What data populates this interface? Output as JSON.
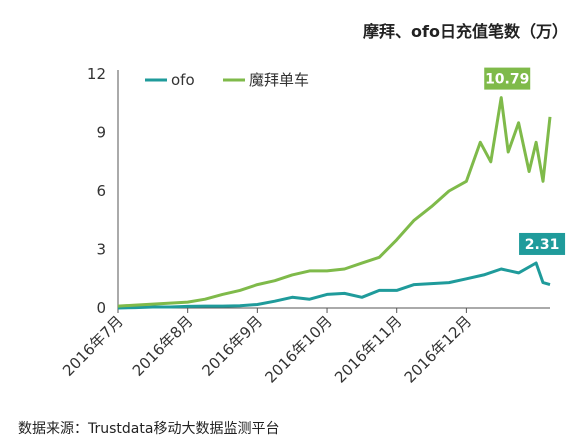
{
  "chart_data": {
    "type": "line",
    "title": "摩拜、ofo日充值笔数（万）",
    "source": "数据来源：Trustdata移动大数据监测平台",
    "x_labels": [
      "2016年7月",
      "2016年8月",
      "2016年9月",
      "2016年10月",
      "2016年11月",
      "2016年12月"
    ],
    "yticks": [
      0,
      3,
      6,
      9,
      12
    ],
    "ylim": [
      0,
      12
    ],
    "xlim": [
      0,
      6.2
    ],
    "legend_position": "top-left",
    "series": [
      {
        "name": "ofo",
        "color": "#1f9b9b",
        "annotation": "2.31",
        "x": [
          0,
          0.25,
          0.5,
          0.75,
          1,
          1.25,
          1.5,
          1.75,
          2,
          2.25,
          2.5,
          2.75,
          3,
          3.25,
          3.5,
          3.75,
          4,
          4.25,
          4.5,
          4.75,
          5,
          5.25,
          5.5,
          5.75,
          6,
          6.1,
          6.2
        ],
        "y": [
          0,
          0.02,
          0.05,
          0.05,
          0.08,
          0.1,
          0.1,
          0.12,
          0.18,
          0.35,
          0.55,
          0.45,
          0.7,
          0.75,
          0.55,
          0.9,
          0.9,
          1.2,
          1.25,
          1.3,
          1.5,
          1.7,
          2.0,
          1.8,
          2.31,
          1.3,
          1.2
        ]
      },
      {
        "name": "魔拜单车",
        "color": "#7fba4a",
        "annotation": "10.79",
        "x": [
          0,
          0.25,
          0.5,
          0.75,
          1,
          1.25,
          1.5,
          1.75,
          2,
          2.25,
          2.5,
          2.75,
          3,
          3.25,
          3.5,
          3.75,
          4,
          4.25,
          4.5,
          4.75,
          5,
          5.2,
          5.35,
          5.5,
          5.6,
          5.75,
          5.9,
          6.0,
          6.1,
          6.2
        ],
        "y": [
          0.1,
          0.15,
          0.2,
          0.25,
          0.3,
          0.45,
          0.7,
          0.9,
          1.2,
          1.4,
          1.7,
          1.9,
          1.9,
          2.0,
          2.3,
          2.6,
          3.5,
          4.5,
          5.2,
          6.0,
          6.5,
          8.5,
          7.5,
          10.79,
          8.0,
          9.5,
          7.0,
          8.5,
          6.5,
          9.8
        ]
      }
    ]
  }
}
